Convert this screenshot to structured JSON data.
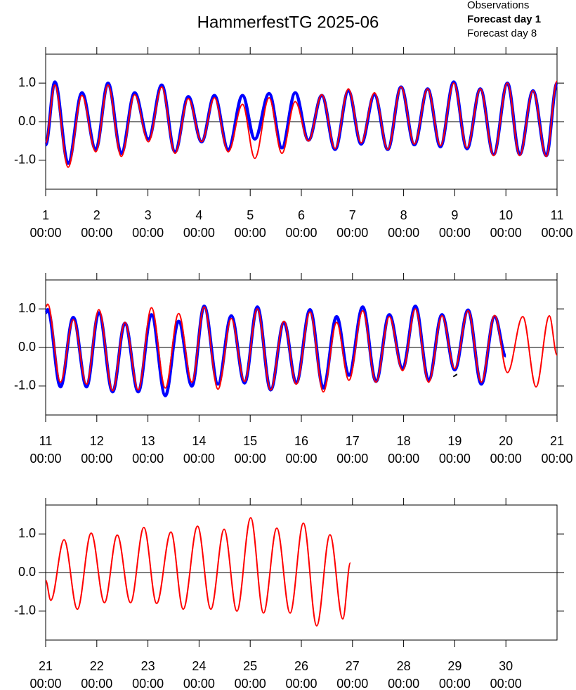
{
  "chart_data": [
    {
      "type": "line",
      "title": "HammerfestTG 2025-06",
      "xlim": [
        1,
        11
      ],
      "xticks": [
        1,
        2,
        3,
        4,
        5,
        6,
        7,
        8,
        9,
        10,
        11
      ],
      "xtick_time": "00:00",
      "ylim": [
        -1.75,
        1.75
      ],
      "yticks": [
        {
          "value": -1,
          "label": "-1.0"
        },
        {
          "value": 0,
          "label": "0.0"
        },
        {
          "value": 1,
          "label": "1.0"
        }
      ],
      "reference_line": 0,
      "series": [
        {
          "name": "Observations",
          "color": "#000000",
          "x": [],
          "values": []
        },
        {
          "name": "Forecast day 1",
          "color": "#0000ff",
          "x": [
            1.0,
            1.18,
            1.44,
            1.71,
            1.98,
            2.22,
            2.48,
            2.74,
            3.01,
            3.27,
            3.53,
            3.79,
            4.05,
            4.3,
            4.57,
            4.85,
            5.09,
            5.37,
            5.62,
            5.88,
            6.14,
            6.4,
            6.66,
            6.92,
            7.17,
            7.43,
            7.69,
            7.95,
            8.21,
            8.47,
            8.72,
            8.98,
            9.24,
            9.5,
            9.76,
            10.03,
            10.27,
            10.53,
            10.79,
            11.0
          ],
          "values": [
            -0.6,
            1.03,
            -1.08,
            0.75,
            -0.72,
            1.0,
            -0.82,
            0.75,
            -0.45,
            0.95,
            -0.78,
            0.65,
            -0.52,
            0.68,
            -0.72,
            0.68,
            -0.45,
            0.73,
            -0.68,
            0.75,
            -0.48,
            0.68,
            -0.72,
            0.8,
            -0.58,
            0.7,
            -0.72,
            0.9,
            -0.6,
            0.85,
            -0.65,
            1.03,
            -0.7,
            0.85,
            -0.85,
            1.0,
            -0.85,
            0.8,
            -0.88,
            1.0
          ]
        },
        {
          "name": "Forecast day 8",
          "color": "#ff0000",
          "x": [
            1.0,
            1.18,
            1.44,
            1.71,
            1.98,
            2.22,
            2.48,
            2.74,
            3.01,
            3.27,
            3.53,
            3.79,
            4.05,
            4.3,
            4.57,
            4.85,
            5.09,
            5.37,
            5.62,
            5.88,
            6.14,
            6.4,
            6.66,
            6.92,
            7.17,
            7.43,
            7.69,
            7.95,
            8.21,
            8.47,
            8.72,
            8.98,
            9.24,
            9.5,
            9.76,
            10.03,
            10.27,
            10.53,
            10.79,
            11.0
          ],
          "values": [
            -0.55,
            0.95,
            -1.18,
            0.68,
            -0.78,
            0.95,
            -0.9,
            0.7,
            -0.52,
            0.9,
            -0.82,
            0.6,
            -0.52,
            0.62,
            -0.78,
            0.45,
            -0.95,
            0.62,
            -0.82,
            0.52,
            -0.5,
            0.7,
            -0.7,
            0.85,
            -0.55,
            0.75,
            -0.72,
            0.9,
            -0.58,
            0.85,
            -0.62,
            1.0,
            -0.68,
            0.85,
            -0.88,
            1.0,
            -0.88,
            0.8,
            -0.9,
            1.05
          ]
        }
      ]
    },
    {
      "type": "line",
      "xlim": [
        11,
        21
      ],
      "xticks": [
        11,
        12,
        13,
        14,
        15,
        16,
        17,
        18,
        19,
        20,
        21
      ],
      "xtick_time": "00:00",
      "ylim": [
        -1.75,
        1.75
      ],
      "yticks": [
        {
          "value": -1,
          "label": "-1.0"
        },
        {
          "value": 0,
          "label": "0.0"
        },
        {
          "value": 1,
          "label": "1.0"
        }
      ],
      "reference_line": 0,
      "series": [
        {
          "color": "#000000",
          "x": [
            18.97,
            19.05
          ],
          "values": [
            -0.75,
            -0.7
          ]
        },
        {
          "color": "#0000ff",
          "x": [
            11.0,
            11.04,
            11.29,
            11.54,
            11.8,
            12.04,
            12.31,
            12.55,
            12.81,
            13.07,
            13.34,
            13.6,
            13.86,
            14.1,
            14.37,
            14.63,
            14.89,
            15.14,
            15.4,
            15.66,
            15.9,
            16.17,
            16.43,
            16.69,
            16.93,
            17.2,
            17.46,
            17.72,
            17.98,
            18.23,
            18.49,
            18.75,
            19.0,
            19.26,
            19.52,
            19.78,
            20.0
          ],
          "values": [
            0.9,
            0.98,
            -1.02,
            0.78,
            -1.02,
            0.9,
            -1.15,
            0.63,
            -1.15,
            0.85,
            -1.25,
            0.68,
            -1.0,
            1.07,
            -0.95,
            0.82,
            -0.92,
            1.05,
            -1.1,
            0.65,
            -0.92,
            0.98,
            -1.05,
            0.8,
            -0.72,
            1.05,
            -0.88,
            0.85,
            -0.55,
            1.07,
            -0.85,
            0.85,
            -0.58,
            0.97,
            -0.95,
            0.8,
            -0.22
          ]
        },
        {
          "color": "#ff0000",
          "x": [
            11.0,
            11.04,
            11.29,
            11.54,
            11.8,
            12.04,
            12.31,
            12.55,
            12.81,
            13.07,
            13.34,
            13.6,
            13.86,
            14.1,
            14.37,
            14.63,
            14.89,
            15.14,
            15.4,
            15.66,
            15.9,
            16.17,
            16.43,
            16.69,
            16.93,
            17.2,
            17.46,
            17.72,
            17.98,
            18.23,
            18.49,
            18.75,
            19.0,
            19.26,
            19.52,
            19.78,
            20.03,
            20.33,
            20.59,
            20.85,
            21.0
          ],
          "values": [
            1.05,
            1.12,
            -0.9,
            0.72,
            -0.95,
            0.98,
            -1.12,
            0.65,
            -1.1,
            1.03,
            -1.05,
            0.88,
            -0.9,
            1.05,
            -1.08,
            0.75,
            -0.88,
            1.0,
            -1.1,
            0.68,
            -0.95,
            0.92,
            -1.15,
            0.65,
            -0.85,
            0.95,
            -0.9,
            0.8,
            -0.6,
            1.0,
            -0.9,
            0.82,
            -0.55,
            0.95,
            -0.9,
            0.83,
            -0.65,
            0.8,
            -1.02,
            0.82,
            -0.2
          ]
        }
      ]
    },
    {
      "type": "line",
      "xlim": [
        21,
        31
      ],
      "xticks": [
        21,
        22,
        23,
        24,
        25,
        26,
        27,
        28,
        29,
        30
      ],
      "xtick_time": "00:00",
      "ylim": [
        -1.75,
        1.75
      ],
      "yticks": [
        {
          "value": -1,
          "label": "-1.0"
        },
        {
          "value": 0,
          "label": "0.0"
        },
        {
          "value": 1,
          "label": "1.0"
        }
      ],
      "reference_line": 0,
      "series": [
        {
          "color": "#ff0000",
          "x": [
            21.0,
            21.1,
            21.36,
            21.62,
            21.89,
            22.15,
            22.4,
            22.66,
            22.92,
            23.17,
            23.45,
            23.69,
            23.97,
            24.23,
            24.49,
            24.74,
            25.01,
            25.26,
            25.52,
            25.78,
            26.04,
            26.3,
            26.56,
            26.81,
            26.96
          ],
          "values": [
            -0.2,
            -0.72,
            0.85,
            -0.95,
            1.02,
            -0.78,
            0.97,
            -0.78,
            1.17,
            -0.8,
            1.05,
            -0.95,
            1.2,
            -0.95,
            1.12,
            -1.0,
            1.42,
            -1.05,
            1.15,
            -1.05,
            1.28,
            -1.38,
            0.98,
            -1.2,
            0.25
          ]
        }
      ]
    }
  ]
}
